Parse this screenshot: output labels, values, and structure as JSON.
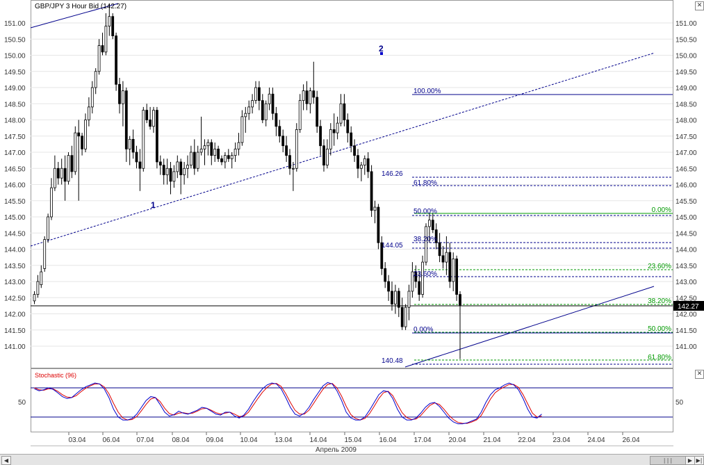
{
  "title": "GBP/JPY 3 Hour Bid",
  "last_price_display": "(142.27)",
  "indicator_label": "Stochastic (96)",
  "stoch_level_label": "50",
  "axis": {
    "month_label": "Апрель 2009",
    "x_ticks": [
      "03.04",
      "06.04",
      "07.04",
      "08.04",
      "09.04",
      "10.04",
      "13.04",
      "14.04",
      "15.04",
      "16.04",
      "17.04",
      "20.04",
      "21.04",
      "22.04",
      "23.04",
      "24.04",
      "26.04"
    ],
    "y_ticks": [
      "151.00",
      "150.50",
      "150.00",
      "149.50",
      "149.00",
      "148.50",
      "148.00",
      "147.50",
      "147.00",
      "146.50",
      "146.00",
      "145.50",
      "145.00",
      "144.50",
      "144.00",
      "143.50",
      "143.00",
      "142.50",
      "142.00",
      "141.50",
      "141.00"
    ]
  },
  "price_tag": "142.27",
  "wave_labels": [
    "1",
    "2"
  ],
  "fib_labels": {
    "retr_blue": [
      "100.00%",
      "61.80%",
      "50.00%",
      "38.20%",
      "23.60%",
      "0.00%"
    ],
    "retr_green": [
      "0.00%",
      "23.60%",
      "38.20%",
      "50.00%",
      "61.80%"
    ],
    "price_notes": [
      "146.26",
      "144.05",
      "140.48"
    ]
  },
  "colors": {
    "bull": "#ffffff",
    "bear": "#000000",
    "blue": "#00008b",
    "green": "#009900",
    "red": "#dd0000"
  },
  "chart_data": {
    "type": "candlestick",
    "title": "GBP/JPY 3 Hour Bid",
    "xlabel": "Апрель 2009",
    "ylim": [
      140.3,
      151.7
    ],
    "last": 142.27,
    "candles": [
      {
        "o": 142.4,
        "h": 142.7,
        "l": 142.3,
        "c": 142.6
      },
      {
        "o": 142.6,
        "h": 143.2,
        "l": 142.5,
        "c": 143.0
      },
      {
        "o": 142.9,
        "h": 143.5,
        "l": 142.8,
        "c": 143.3
      },
      {
        "o": 143.4,
        "h": 144.4,
        "l": 143.3,
        "c": 144.3
      },
      {
        "o": 144.3,
        "h": 145.1,
        "l": 144.2,
        "c": 145.0
      },
      {
        "o": 145.0,
        "h": 146.2,
        "l": 144.9,
        "c": 145.9
      },
      {
        "o": 145.9,
        "h": 146.9,
        "l": 145.8,
        "c": 146.5
      },
      {
        "o": 146.5,
        "h": 146.7,
        "l": 146.0,
        "c": 146.2
      },
      {
        "o": 146.2,
        "h": 146.8,
        "l": 146.0,
        "c": 146.5
      },
      {
        "o": 146.5,
        "h": 146.9,
        "l": 145.5,
        "c": 146.1
      },
      {
        "o": 146.1,
        "h": 147.0,
        "l": 146.0,
        "c": 146.9
      },
      {
        "o": 146.9,
        "h": 147.2,
        "l": 146.2,
        "c": 146.4
      },
      {
        "o": 146.4,
        "h": 147.8,
        "l": 146.3,
        "c": 147.6
      },
      {
        "o": 147.6,
        "h": 148.0,
        "l": 145.5,
        "c": 147.5
      },
      {
        "o": 147.5,
        "h": 147.6,
        "l": 146.9,
        "c": 147.1
      },
      {
        "o": 147.1,
        "h": 148.2,
        "l": 147.0,
        "c": 148.0
      },
      {
        "o": 148.0,
        "h": 148.7,
        "l": 147.8,
        "c": 148.4
      },
      {
        "o": 148.4,
        "h": 149.2,
        "l": 148.2,
        "c": 149.0
      },
      {
        "o": 149.0,
        "h": 149.6,
        "l": 148.8,
        "c": 149.5
      },
      {
        "o": 149.5,
        "h": 150.5,
        "l": 149.4,
        "c": 150.3
      },
      {
        "o": 150.3,
        "h": 150.7,
        "l": 150.0,
        "c": 150.1
      },
      {
        "o": 150.1,
        "h": 151.3,
        "l": 150.0,
        "c": 150.9
      },
      {
        "o": 150.9,
        "h": 151.6,
        "l": 150.6,
        "c": 151.2
      },
      {
        "o": 151.2,
        "h": 151.3,
        "l": 150.5,
        "c": 150.6
      },
      {
        "o": 150.6,
        "h": 150.7,
        "l": 148.9,
        "c": 149.1
      },
      {
        "o": 149.1,
        "h": 149.3,
        "l": 148.2,
        "c": 148.5
      },
      {
        "o": 148.5,
        "h": 149.2,
        "l": 147.8,
        "c": 148.9
      },
      {
        "o": 148.9,
        "h": 149.0,
        "l": 146.7,
        "c": 147.1
      },
      {
        "o": 147.1,
        "h": 147.5,
        "l": 146.6,
        "c": 147.4
      },
      {
        "o": 147.4,
        "h": 147.7,
        "l": 146.8,
        "c": 147.0
      },
      {
        "o": 147.0,
        "h": 147.2,
        "l": 146.5,
        "c": 146.7
      },
      {
        "o": 146.7,
        "h": 147.1,
        "l": 145.8,
        "c": 146.5
      },
      {
        "o": 146.5,
        "h": 148.4,
        "l": 146.4,
        "c": 148.3
      },
      {
        "o": 148.3,
        "h": 148.5,
        "l": 147.9,
        "c": 148.0
      },
      {
        "o": 148.0,
        "h": 148.4,
        "l": 147.7,
        "c": 147.8
      },
      {
        "o": 147.8,
        "h": 148.4,
        "l": 147.6,
        "c": 148.3
      },
      {
        "o": 148.3,
        "h": 148.4,
        "l": 146.5,
        "c": 146.7
      },
      {
        "o": 146.7,
        "h": 146.9,
        "l": 146.3,
        "c": 146.6
      },
      {
        "o": 146.6,
        "h": 146.8,
        "l": 146.0,
        "c": 146.3
      },
      {
        "o": 146.3,
        "h": 146.8,
        "l": 146.0,
        "c": 146.5
      },
      {
        "o": 146.5,
        "h": 146.7,
        "l": 145.7,
        "c": 146.1
      },
      {
        "o": 146.1,
        "h": 146.6,
        "l": 145.9,
        "c": 146.4
      },
      {
        "o": 146.4,
        "h": 146.9,
        "l": 146.2,
        "c": 146.7
      },
      {
        "o": 146.7,
        "h": 146.8,
        "l": 145.7,
        "c": 146.3
      },
      {
        "o": 146.3,
        "h": 146.7,
        "l": 146.0,
        "c": 146.5
      },
      {
        "o": 146.5,
        "h": 146.9,
        "l": 146.2,
        "c": 146.6
      },
      {
        "o": 146.6,
        "h": 147.2,
        "l": 146.5,
        "c": 147.0
      },
      {
        "o": 147.0,
        "h": 147.4,
        "l": 146.3,
        "c": 146.5
      },
      {
        "o": 146.5,
        "h": 147.2,
        "l": 146.4,
        "c": 147.0
      },
      {
        "o": 147.0,
        "h": 148.1,
        "l": 146.9,
        "c": 147.1
      },
      {
        "o": 147.1,
        "h": 147.4,
        "l": 146.6,
        "c": 147.2
      },
      {
        "o": 147.2,
        "h": 147.4,
        "l": 146.9,
        "c": 147.3
      },
      {
        "o": 147.3,
        "h": 147.4,
        "l": 146.6,
        "c": 146.9
      },
      {
        "o": 146.9,
        "h": 147.3,
        "l": 146.7,
        "c": 147.1
      },
      {
        "o": 147.1,
        "h": 147.2,
        "l": 146.7,
        "c": 146.8
      },
      {
        "o": 146.8,
        "h": 146.9,
        "l": 146.6,
        "c": 146.7
      },
      {
        "o": 146.7,
        "h": 147.0,
        "l": 146.5,
        "c": 146.9
      },
      {
        "o": 146.9,
        "h": 147.1,
        "l": 146.7,
        "c": 146.8
      },
      {
        "o": 146.8,
        "h": 147.0,
        "l": 146.5,
        "c": 146.9
      },
      {
        "o": 146.9,
        "h": 147.3,
        "l": 146.7,
        "c": 147.1
      },
      {
        "o": 147.1,
        "h": 147.6,
        "l": 146.9,
        "c": 147.3
      },
      {
        "o": 147.3,
        "h": 148.3,
        "l": 147.2,
        "c": 148.1
      },
      {
        "o": 148.1,
        "h": 148.4,
        "l": 147.6,
        "c": 148.2
      },
      {
        "o": 148.2,
        "h": 148.6,
        "l": 148.0,
        "c": 148.4
      },
      {
        "o": 148.4,
        "h": 148.8,
        "l": 148.2,
        "c": 148.6
      },
      {
        "o": 148.6,
        "h": 149.2,
        "l": 148.5,
        "c": 149.0
      },
      {
        "o": 149.0,
        "h": 149.2,
        "l": 148.3,
        "c": 148.6
      },
      {
        "o": 148.6,
        "h": 148.8,
        "l": 147.9,
        "c": 148.0
      },
      {
        "o": 148.0,
        "h": 148.6,
        "l": 147.8,
        "c": 148.5
      },
      {
        "o": 148.5,
        "h": 149.0,
        "l": 148.3,
        "c": 148.8
      },
      {
        "o": 148.8,
        "h": 149.0,
        "l": 148.0,
        "c": 148.2
      },
      {
        "o": 148.2,
        "h": 148.4,
        "l": 147.5,
        "c": 147.8
      },
      {
        "o": 147.8,
        "h": 148.0,
        "l": 147.3,
        "c": 147.5
      },
      {
        "o": 147.5,
        "h": 147.7,
        "l": 147.0,
        "c": 147.2
      },
      {
        "o": 147.2,
        "h": 147.5,
        "l": 146.7,
        "c": 146.9
      },
      {
        "o": 146.9,
        "h": 147.1,
        "l": 146.3,
        "c": 146.5
      },
      {
        "o": 146.5,
        "h": 146.7,
        "l": 145.8,
        "c": 146.5
      },
      {
        "o": 146.5,
        "h": 147.9,
        "l": 146.4,
        "c": 147.7
      },
      {
        "o": 147.7,
        "h": 148.8,
        "l": 147.6,
        "c": 148.6
      },
      {
        "o": 148.6,
        "h": 149.1,
        "l": 148.3,
        "c": 148.9
      },
      {
        "o": 148.9,
        "h": 149.2,
        "l": 148.3,
        "c": 148.5
      },
      {
        "o": 148.5,
        "h": 149.0,
        "l": 148.2,
        "c": 148.9
      },
      {
        "o": 148.9,
        "h": 149.8,
        "l": 148.5,
        "c": 148.7
      },
      {
        "o": 148.7,
        "h": 148.9,
        "l": 147.6,
        "c": 147.8
      },
      {
        "o": 147.8,
        "h": 148.0,
        "l": 146.9,
        "c": 147.2
      },
      {
        "o": 147.2,
        "h": 147.4,
        "l": 146.4,
        "c": 146.6
      },
      {
        "o": 146.6,
        "h": 147.4,
        "l": 146.5,
        "c": 147.1
      },
      {
        "o": 147.1,
        "h": 147.9,
        "l": 146.9,
        "c": 147.7
      },
      {
        "o": 147.7,
        "h": 148.2,
        "l": 147.2,
        "c": 147.6
      },
      {
        "o": 147.6,
        "h": 148.1,
        "l": 147.4,
        "c": 147.9
      },
      {
        "o": 147.9,
        "h": 148.8,
        "l": 147.8,
        "c": 148.5
      },
      {
        "o": 148.5,
        "h": 148.8,
        "l": 147.8,
        "c": 148.0
      },
      {
        "o": 148.0,
        "h": 148.2,
        "l": 147.3,
        "c": 147.6
      },
      {
        "o": 147.6,
        "h": 147.8,
        "l": 147.0,
        "c": 147.2
      },
      {
        "o": 147.2,
        "h": 147.4,
        "l": 146.7,
        "c": 146.9
      },
      {
        "o": 146.9,
        "h": 147.1,
        "l": 146.2,
        "c": 146.5
      },
      {
        "o": 146.5,
        "h": 146.7,
        "l": 146.1,
        "c": 146.6
      },
      {
        "o": 146.6,
        "h": 146.9,
        "l": 146.3,
        "c": 146.8
      },
      {
        "o": 146.8,
        "h": 147.0,
        "l": 146.2,
        "c": 146.4
      },
      {
        "o": 146.4,
        "h": 146.6,
        "l": 145.0,
        "c": 145.2
      },
      {
        "o": 145.2,
        "h": 145.5,
        "l": 144.8,
        "c": 145.3
      },
      {
        "o": 145.3,
        "h": 145.4,
        "l": 144.0,
        "c": 144.2
      },
      {
        "o": 144.2,
        "h": 144.4,
        "l": 143.2,
        "c": 143.4
      },
      {
        "o": 143.4,
        "h": 143.6,
        "l": 142.8,
        "c": 143.0
      },
      {
        "o": 143.0,
        "h": 143.2,
        "l": 142.4,
        "c": 142.7
      },
      {
        "o": 142.7,
        "h": 143.0,
        "l": 142.1,
        "c": 142.3
      },
      {
        "o": 142.3,
        "h": 142.9,
        "l": 142.0,
        "c": 142.7
      },
      {
        "o": 142.7,
        "h": 142.8,
        "l": 141.9,
        "c": 142.2
      },
      {
        "o": 142.2,
        "h": 142.5,
        "l": 141.5,
        "c": 141.6
      },
      {
        "o": 141.6,
        "h": 142.3,
        "l": 141.5,
        "c": 142.2
      },
      {
        "o": 142.2,
        "h": 142.9,
        "l": 141.8,
        "c": 142.7
      },
      {
        "o": 142.7,
        "h": 143.6,
        "l": 142.5,
        "c": 143.3
      },
      {
        "o": 143.3,
        "h": 143.5,
        "l": 142.8,
        "c": 143.0
      },
      {
        "o": 143.0,
        "h": 143.3,
        "l": 142.4,
        "c": 142.6
      },
      {
        "o": 142.6,
        "h": 143.8,
        "l": 142.5,
        "c": 143.6
      },
      {
        "o": 143.6,
        "h": 144.8,
        "l": 143.5,
        "c": 144.7
      },
      {
        "o": 144.7,
        "h": 145.1,
        "l": 144.2,
        "c": 144.9
      },
      {
        "o": 144.9,
        "h": 145.1,
        "l": 144.5,
        "c": 144.6
      },
      {
        "o": 144.6,
        "h": 144.8,
        "l": 144.0,
        "c": 144.2
      },
      {
        "o": 144.2,
        "h": 144.5,
        "l": 143.6,
        "c": 143.8
      },
      {
        "o": 143.8,
        "h": 144.1,
        "l": 143.4,
        "c": 143.6
      },
      {
        "o": 143.6,
        "h": 144.4,
        "l": 143.2,
        "c": 143.9
      },
      {
        "o": 143.9,
        "h": 144.2,
        "l": 142.8,
        "c": 143.0
      },
      {
        "o": 143.0,
        "h": 143.9,
        "l": 142.7,
        "c": 143.7
      },
      {
        "o": 143.7,
        "h": 143.8,
        "l": 142.4,
        "c": 142.6
      },
      {
        "o": 142.6,
        "h": 142.7,
        "l": 140.6,
        "c": 142.27
      }
    ],
    "stochastic": {
      "name": "Stochastic (96)",
      "levels": [
        80,
        20
      ],
      "main": [
        78,
        74,
        76,
        80,
        77,
        70,
        62,
        58,
        60,
        68,
        76,
        82,
        86,
        90,
        88,
        78,
        60,
        36,
        20,
        14,
        14,
        17,
        26,
        40,
        54,
        62,
        60,
        46,
        30,
        22,
        25,
        32,
        28,
        26,
        30,
        34,
        40,
        38,
        32,
        26,
        24,
        30,
        30,
        22,
        18,
        24,
        36,
        52,
        66,
        78,
        86,
        90,
        88,
        78,
        60,
        40,
        26,
        22,
        28,
        40,
        56,
        70,
        84,
        91,
        88,
        74,
        54,
        30,
        18,
        14,
        14,
        20,
        34,
        50,
        66,
        74,
        72,
        58,
        36,
        20,
        14,
        14,
        18,
        28,
        40,
        48,
        50,
        42,
        30,
        18,
        10,
        6,
        6,
        8,
        12,
        16,
        30,
        50,
        66,
        76,
        80,
        86,
        90,
        86,
        76,
        58,
        36,
        20,
        18,
        26
      ],
      "signal": [
        80,
        76,
        75,
        78,
        78,
        73,
        66,
        61,
        60,
        64,
        72,
        79,
        84,
        88,
        88,
        82,
        68,
        48,
        30,
        18,
        14,
        15,
        21,
        33,
        46,
        57,
        60,
        52,
        38,
        27,
        24,
        28,
        29,
        27,
        28,
        32,
        37,
        38,
        34,
        29,
        26,
        28,
        30,
        26,
        21,
        22,
        30,
        44,
        58,
        71,
        81,
        88,
        89,
        83,
        68,
        50,
        34,
        26,
        26,
        34,
        48,
        63,
        77,
        87,
        89,
        80,
        63,
        42,
        25,
        17,
        14,
        17,
        27,
        42,
        58,
        70,
        73,
        64,
        46,
        29,
        19,
        15,
        16,
        23,
        34,
        44,
        49,
        46,
        36,
        24,
        15,
        9,
        7,
        7,
        10,
        14,
        23,
        40,
        57,
        70,
        77,
        82,
        87,
        87,
        81,
        66,
        47,
        28,
        20,
        22
      ]
    }
  }
}
